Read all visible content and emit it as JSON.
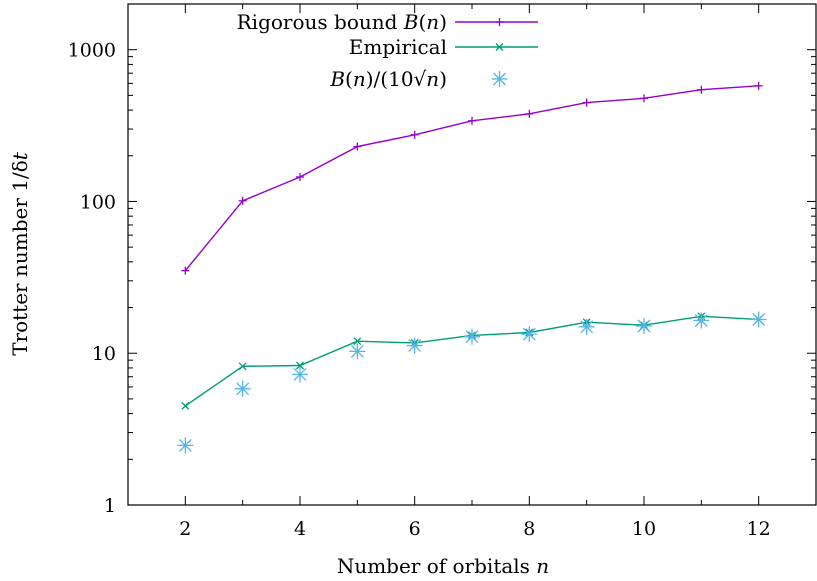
{
  "chart_data": {
    "type": "line",
    "title": "",
    "xlabel": "Number of orbitals n",
    "ylabel": "Trotter number 1/δt",
    "xlim": [
      1,
      13
    ],
    "ylim": [
      1,
      2000
    ],
    "y_scale": "log",
    "grid": false,
    "legend_position": "top-left",
    "x_ticks": [
      2,
      4,
      6,
      8,
      10,
      12
    ],
    "x_tick_labels": [
      "2",
      "4",
      "6",
      "8",
      "10",
      "12"
    ],
    "y_ticks": [
      1,
      10,
      100,
      1000
    ],
    "y_tick_labels": [
      "1",
      "10",
      "100",
      "1000"
    ],
    "x": [
      2,
      3,
      4,
      5,
      6,
      7,
      8,
      9,
      10,
      11,
      12
    ],
    "series": [
      {
        "name": "Rigorous bound B(n)",
        "color": "#9400d3",
        "style": "line+plus",
        "values": [
          35,
          101,
          145,
          230,
          275,
          340,
          378,
          448,
          478,
          545,
          578
        ]
      },
      {
        "name": "Empirical",
        "color": "#009e73",
        "style": "line+cross",
        "values": [
          4.5,
          8.2,
          8.3,
          12.0,
          11.7,
          13.1,
          13.7,
          16.0,
          15.3,
          17.5,
          16.7
        ]
      },
      {
        "name": "B(n)/(10√n)",
        "color": "#56b4e9",
        "style": "points+star",
        "values": [
          2.47,
          5.83,
          7.25,
          10.29,
          11.23,
          12.85,
          13.36,
          14.93,
          15.12,
          16.43,
          16.69
        ]
      }
    ]
  }
}
